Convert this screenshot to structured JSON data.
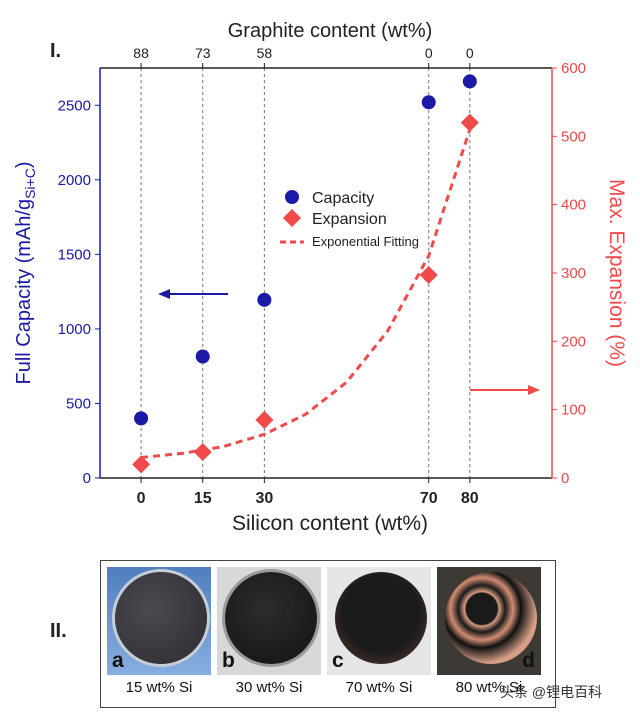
{
  "panel_labels": {
    "top": "I.",
    "bottom": "II."
  },
  "chart_data": {
    "type": "scatter",
    "title": "",
    "xlabel": "Silicon content (wt%)",
    "x2label": "Graphite content (wt%)",
    "ylabel_left_main": "Full Capacity (mAh/g",
    "ylabel_left_sub": "Si+C",
    "ylabel_left_end": ")",
    "ylabel_right": "Max. Expansion (%)",
    "xlim": [
      -10,
      100
    ],
    "ylim_left": [
      0,
      2750
    ],
    "ylim_right": [
      0,
      600
    ],
    "x_ticks": [
      0,
      15,
      30,
      70,
      80
    ],
    "x2_ticks": [
      "88",
      "73",
      "58",
      "0",
      "0"
    ],
    "y_left_ticks": [
      0,
      500,
      1000,
      1500,
      2000,
      2500
    ],
    "y_right_ticks": [
      0,
      100,
      200,
      300,
      400,
      500,
      600
    ],
    "grid": "vertical dashed lines at each silicon content",
    "legend_position": "center",
    "series": [
      {
        "name": "Capacity",
        "axis": "left",
        "marker": "circle",
        "color": "#1a1aa6",
        "x": [
          0,
          15,
          30,
          70,
          80
        ],
        "y": [
          400,
          815,
          1195,
          2520,
          2660
        ]
      },
      {
        "name": "Expansion",
        "axis": "right",
        "marker": "diamond",
        "color": "#f04a4a",
        "x": [
          0,
          15,
          30,
          70,
          80
        ],
        "y": [
          20,
          38,
          85,
          297,
          520
        ]
      },
      {
        "name": "Exponential Fitting",
        "axis": "right",
        "style": "dashed",
        "color": "#f04a4a",
        "x": [
          0,
          10,
          20,
          30,
          40,
          50,
          60,
          70,
          80
        ],
        "y": [
          30,
          36,
          46,
          64,
          93,
          140,
          215,
          325,
          510
        ]
      }
    ],
    "colors": {
      "left_axis": "#1a1aa6",
      "right_axis": "#f04a4a"
    }
  },
  "photos": [
    {
      "letter": "a",
      "caption": "15 wt% Si"
    },
    {
      "letter": "b",
      "caption": "30 wt% Si"
    },
    {
      "letter": "c",
      "caption": "70 wt% Si"
    },
    {
      "letter": "d",
      "caption": "80 wt% Si"
    }
  ],
  "watermark": "头条 @锂电百科"
}
